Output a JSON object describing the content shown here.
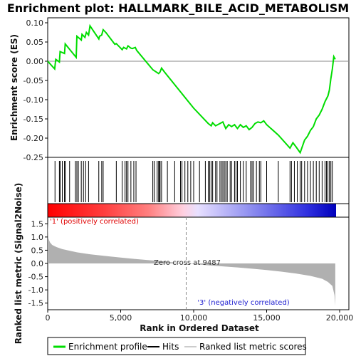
{
  "title": "Enrichment plot: HALLMARK_BILE_ACID_METABOLISM",
  "colors": {
    "es_line": "#00dd00",
    "hit": "#000000",
    "ranked_fill": "#b0b0b0",
    "pos_label": "#e00000",
    "neg_label": "#2020d0",
    "zero_line": "#888888"
  },
  "chart_data": [
    {
      "type": "line",
      "name": "enrichment-plot",
      "ylabel": "Enrichment score (ES)",
      "ylim": [
        -0.25,
        0.1
      ],
      "yticks": [
        "0.10",
        "0.05",
        "0.00",
        "-0.05",
        "-0.10",
        "-0.15",
        "-0.20",
        "-0.25"
      ],
      "ytick_values": [
        0.1,
        0.05,
        0.0,
        -0.05,
        -0.1,
        -0.15,
        -0.2,
        -0.25
      ],
      "xlim": [
        0,
        20000
      ],
      "grid": false,
      "series": [
        {
          "name": "Enrichment profile",
          "x": [
            0,
            480,
            550,
            800,
            850,
            1150,
            1200,
            1950,
            2000,
            2300,
            2350,
            2550,
            2650,
            2800,
            2900,
            3500,
            3550,
            3700,
            3800,
            4000,
            4600,
            4700,
            5100,
            5200,
            5400,
            5500,
            5700,
            5800,
            6000,
            6100,
            7200,
            7600,
            7700,
            7800,
            8000,
            9000,
            10000,
            11000,
            11200,
            11300,
            11500,
            11800,
            12000,
            12200,
            12400,
            12600,
            12800,
            13000,
            13200,
            13400,
            13600,
            13800,
            14000,
            14200,
            14400,
            14600,
            14800,
            15000,
            15800,
            16600,
            16800,
            17000,
            17300,
            17600,
            17800,
            18000,
            18200,
            18400,
            18600,
            18800,
            19000,
            19200,
            19300,
            19400,
            19500,
            19600,
            19700
          ],
          "y": [
            0.0,
            -0.02,
            0.005,
            -0.002,
            0.025,
            0.02,
            0.045,
            0.01,
            0.065,
            0.055,
            0.07,
            0.062,
            0.075,
            0.068,
            0.092,
            0.058,
            0.065,
            0.068,
            0.082,
            0.074,
            0.044,
            0.046,
            0.03,
            0.036,
            0.032,
            0.04,
            0.034,
            0.033,
            0.036,
            0.028,
            -0.022,
            -0.032,
            -0.028,
            -0.018,
            -0.028,
            -0.075,
            -0.122,
            -0.162,
            -0.168,
            -0.16,
            -0.168,
            -0.162,
            -0.158,
            -0.175,
            -0.165,
            -0.17,
            -0.165,
            -0.175,
            -0.165,
            -0.172,
            -0.168,
            -0.178,
            -0.172,
            -0.162,
            -0.158,
            -0.16,
            -0.155,
            -0.165,
            -0.192,
            -0.226,
            -0.212,
            -0.222,
            -0.238,
            -0.205,
            -0.195,
            -0.18,
            -0.17,
            -0.15,
            -0.14,
            -0.125,
            -0.105,
            -0.09,
            -0.075,
            -0.045,
            -0.02,
            0.012,
            0.005
          ]
        }
      ]
    },
    {
      "type": "hits",
      "name": "hits",
      "xlim": [
        0,
        20000
      ],
      "x": [
        500,
        800,
        850,
        1000,
        1150,
        1200,
        1500,
        1900,
        2000,
        2100,
        2300,
        2450,
        2600,
        2800,
        3500,
        3700,
        3800,
        4700,
        5100,
        5300,
        5400,
        5500,
        5700,
        5900,
        6050,
        7200,
        7300,
        7500,
        7600,
        7650,
        7700,
        7800,
        8200,
        8700,
        9100,
        9200,
        9400,
        9600,
        9800,
        10000,
        10400,
        10800,
        11000,
        11100,
        11200,
        11300,
        11500,
        11600,
        11800,
        11900,
        12000,
        12100,
        12200,
        12300,
        12500,
        12600,
        12800,
        12900,
        13000,
        13200,
        13400,
        13600,
        13900,
        14000,
        14100,
        14300,
        14500,
        14600,
        15000,
        15800,
        16600,
        16700,
        16900,
        17100,
        17300,
        17400,
        17600,
        17800,
        18000,
        18200,
        18400,
        18600,
        18800,
        19000,
        19100,
        19200,
        19300,
        19400,
        19500
      ]
    },
    {
      "type": "area",
      "name": "ranked-list-metric",
      "ylabel": "Ranked list metric (Signal2Noise)",
      "xlabel": "Rank in Ordered Dataset",
      "ylim": [
        -1.75,
        1.75
      ],
      "yticks": [
        "1.5",
        "1.0",
        "0.5",
        "0.0",
        "-0.5",
        "-1.0",
        "-1.5"
      ],
      "ytick_values": [
        1.5,
        1.0,
        0.5,
        0.0,
        -0.5,
        -1.0,
        -1.5
      ],
      "xlim": [
        0,
        20000
      ],
      "xticks": [
        "0",
        "5,000",
        "10,000",
        "15,000",
        "20,000"
      ],
      "xtick_values": [
        0,
        5000,
        10000,
        15000,
        20000
      ],
      "x": [
        0,
        50,
        150,
        300,
        600,
        1000,
        2000,
        3000,
        4000,
        5000,
        6000,
        7000,
        8000,
        9000,
        9487,
        10000,
        11000,
        12000,
        13000,
        14000,
        15000,
        16000,
        17000,
        18000,
        18800,
        19200,
        19500,
        19650,
        19700
      ],
      "values": [
        1.6,
        0.95,
        0.8,
        0.7,
        0.62,
        0.54,
        0.42,
        0.34,
        0.28,
        0.22,
        0.17,
        0.12,
        0.07,
        0.02,
        0.0,
        -0.02,
        -0.07,
        -0.11,
        -0.15,
        -0.2,
        -0.25,
        -0.31,
        -0.38,
        -0.47,
        -0.58,
        -0.7,
        -0.85,
        -1.2,
        -1.6
      ],
      "annotations": {
        "zero_cross": "Zero cross at 9487",
        "zero_cross_x": 9487,
        "pos_label": "'1' (positively correlated)",
        "neg_label": "'3' (negatively correlated)"
      }
    }
  ],
  "legend": {
    "items": [
      {
        "label": "Enrichment profile",
        "color": "#00dd00"
      },
      {
        "label": "Hits",
        "color": "#000000"
      },
      {
        "label": "Ranked list metric scores",
        "color": "#cccccc"
      }
    ]
  }
}
